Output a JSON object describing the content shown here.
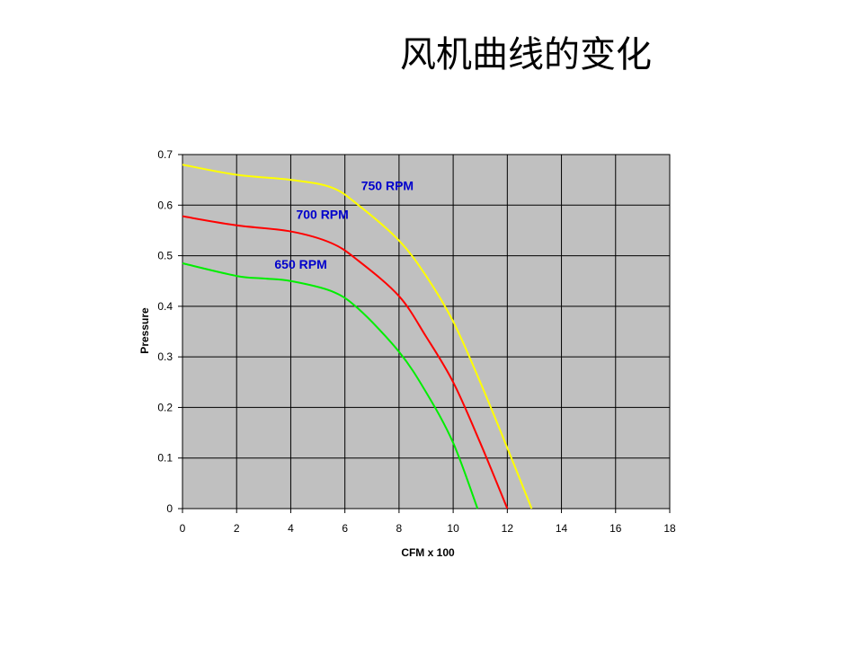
{
  "slide": {
    "title": "风机曲线的变化"
  },
  "chart_data": {
    "type": "line",
    "xlabel": "CFM x 100",
    "ylabel": "Pressure",
    "xlim": [
      0,
      18
    ],
    "ylim": [
      0,
      0.7
    ],
    "x_ticks": [
      "0",
      "2",
      "4",
      "6",
      "8",
      "10",
      "12",
      "14",
      "16",
      "18"
    ],
    "y_ticks": [
      "0",
      "0.1",
      "0.2",
      "0.3",
      "0.4",
      "0.5",
      "0.6",
      "0.7"
    ],
    "grid": true,
    "plot_background": "#c0c0c0",
    "legend": "none",
    "series": [
      {
        "name": "750 RPM",
        "color": "#ffff00",
        "x": [
          0,
          2,
          4,
          5.5,
          6.5,
          8,
          9,
          10,
          11,
          12,
          12.9
        ],
        "y": [
          0.68,
          0.66,
          0.65,
          0.635,
          0.6,
          0.53,
          0.46,
          0.37,
          0.25,
          0.12,
          0
        ]
      },
      {
        "name": "700 RPM",
        "color": "#ff0000",
        "x": [
          0,
          2,
          4,
          5.5,
          6.5,
          8,
          9,
          10,
          11,
          12
        ],
        "y": [
          0.578,
          0.56,
          0.548,
          0.525,
          0.49,
          0.42,
          0.34,
          0.25,
          0.13,
          0
        ]
      },
      {
        "name": "650 RPM",
        "color": "#00ee00",
        "x": [
          0,
          2,
          3,
          4,
          5.5,
          6.5,
          8,
          9,
          10,
          10.9
        ],
        "y": [
          0.485,
          0.46,
          0.455,
          0.45,
          0.43,
          0.395,
          0.31,
          0.23,
          0.13,
          0
        ]
      }
    ],
    "annotations": [
      {
        "text": "750 RPM",
        "x": 6.6,
        "y": 0.63,
        "color": "#0000cc"
      },
      {
        "text": "700 RPM",
        "x": 4.2,
        "y": 0.573,
        "color": "#0000cc"
      },
      {
        "text": "650 RPM",
        "x": 3.4,
        "y": 0.474,
        "color": "#0000cc"
      }
    ]
  }
}
